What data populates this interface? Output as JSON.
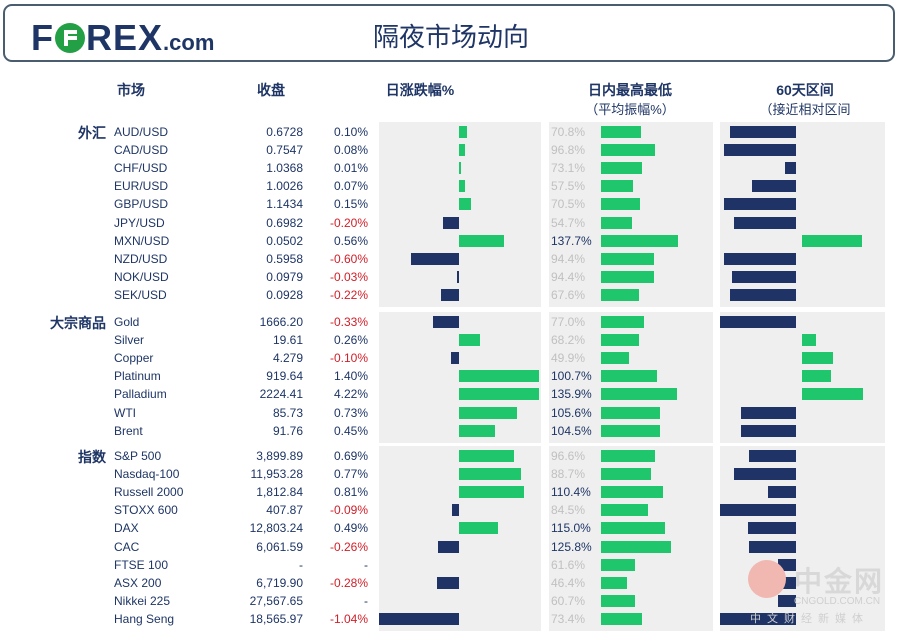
{
  "header": {
    "logo": "FOREX",
    "logo_o": "O",
    "logo_domain": ".com",
    "title": "隔夜市场动向"
  },
  "columns": {
    "market": "市场",
    "close": "收盘",
    "daily_change": "日涨跌幅%",
    "intraday_hilo": "日内最高最低",
    "intraday_sub": "（平均振幅%）",
    "range60": "60天区间",
    "range60_sub": "（接近相对区间"
  },
  "colors": {
    "positive": "#1fc66c",
    "negative": "#1f3366",
    "neg_text": "#d0202a",
    "navy": "#1e3565"
  },
  "chart_data": {
    "type": "bar",
    "groups": [
      {
        "name": "外汇",
        "rows": [
          {
            "name": "AUD/USD",
            "close": "0.6728",
            "change": "0.10%",
            "change_value": 0.1,
            "range": "70.8%",
            "range_value": 70.8,
            "pos60": -0.55
          },
          {
            "name": "CAD/USD",
            "close": "0.7547",
            "change": "0.08%",
            "change_value": 0.08,
            "range": "96.8%",
            "range_value": 96.8,
            "pos60": -0.6
          },
          {
            "name": "CHF/USD",
            "close": "1.0368",
            "change": "0.01%",
            "change_value": 0.01,
            "range": "73.1%",
            "range_value": 73.1,
            "pos60": -0.09
          },
          {
            "name": "EUR/USD",
            "close": "1.0026",
            "change": "0.07%",
            "change_value": 0.07,
            "range": "57.5%",
            "range_value": 57.5,
            "pos60": -0.37
          },
          {
            "name": "GBP/USD",
            "close": "1.1434",
            "change": "0.15%",
            "change_value": 0.15,
            "range": "70.5%",
            "range_value": 70.5,
            "pos60": -0.6
          },
          {
            "name": "JPY/USD",
            "close": "0.6982",
            "change": "-0.20%",
            "change_value": -0.2,
            "range": "54.7%",
            "range_value": 54.7,
            "pos60": -0.52
          },
          {
            "name": "MXN/USD",
            "close": "0.0502",
            "change": "0.56%",
            "change_value": 0.56,
            "range": "137.7%",
            "range_value": 137.7,
            "pos60": 0.5
          },
          {
            "name": "NZD/USD",
            "close": "0.5958",
            "change": "-0.60%",
            "change_value": -0.6,
            "range": "94.4%",
            "range_value": 94.4,
            "pos60": -0.6
          },
          {
            "name": "NOK/USD",
            "close": "0.0979",
            "change": "-0.03%",
            "change_value": -0.03,
            "range": "94.4%",
            "range_value": 94.4,
            "pos60": -0.53
          },
          {
            "name": "SEK/USD",
            "close": "0.0928",
            "change": "-0.22%",
            "change_value": -0.22,
            "range": "67.6%",
            "range_value": 67.6,
            "pos60": -0.55
          }
        ]
      },
      {
        "name": "大宗商品",
        "rows": [
          {
            "name": "Gold",
            "close": "1666.20",
            "change": "-0.33%",
            "change_value": -0.33,
            "range": "77.0%",
            "range_value": 77.0,
            "pos60": -0.67
          },
          {
            "name": "Silver",
            "close": "19.61",
            "change": "0.26%",
            "change_value": 0.26,
            "range": "68.2%",
            "range_value": 68.2,
            "pos60": 0.12
          },
          {
            "name": "Copper",
            "close": "4.279",
            "change": "-0.10%",
            "change_value": -0.1,
            "range": "49.9%",
            "range_value": 49.9,
            "pos60": 0.26
          },
          {
            "name": "Platinum",
            "close": "919.64",
            "change": "1.40%",
            "change_value": 1.4,
            "range": "100.7%",
            "range_value": 100.7,
            "pos60": 0.24
          },
          {
            "name": "Palladium",
            "close": "2224.41",
            "change": "4.22%",
            "change_value": 4.22,
            "range": "135.9%",
            "range_value": 135.9,
            "pos60": 0.51
          },
          {
            "name": "WTI",
            "close": "85.73",
            "change": "0.73%",
            "change_value": 0.73,
            "range": "105.6%",
            "range_value": 105.6,
            "pos60": -0.46
          },
          {
            "name": "Brent",
            "close": "91.76",
            "change": "0.45%",
            "change_value": 0.45,
            "range": "104.5%",
            "range_value": 104.5,
            "pos60": -0.46
          }
        ]
      },
      {
        "name": "指数",
        "rows": [
          {
            "name": "S&P 500",
            "close": "3,899.89",
            "change": "0.69%",
            "change_value": 0.69,
            "range": "96.6%",
            "range_value": 96.6,
            "pos60": -0.39
          },
          {
            "name": "Nasdaq-100",
            "close": "11,953.28",
            "change": "0.77%",
            "change_value": 0.77,
            "range": "88.7%",
            "range_value": 88.7,
            "pos60": -0.52
          },
          {
            "name": "Russell 2000",
            "close": "1,812.84",
            "change": "0.81%",
            "change_value": 0.81,
            "range": "110.4%",
            "range_value": 110.4,
            "pos60": -0.23
          },
          {
            "name": "STOXX 600",
            "close": "407.87",
            "change": "-0.09%",
            "change_value": -0.09,
            "range": "84.5%",
            "range_value": 84.5,
            "pos60": -0.64
          },
          {
            "name": "DAX",
            "close": "12,803.24",
            "change": "0.49%",
            "change_value": 0.49,
            "range": "115.0%",
            "range_value": 115.0,
            "pos60": -0.4
          },
          {
            "name": "CAC",
            "close": "6,061.59",
            "change": "-0.26%",
            "change_value": -0.26,
            "range": "125.8%",
            "range_value": 125.8,
            "pos60": -0.39
          },
          {
            "name": "FTSE 100",
            "close": "-",
            "change": "-",
            "change_value": 0,
            "range": "61.6%",
            "range_value": 61.6,
            "pos60": -0.15
          },
          {
            "name": "ASX 200",
            "close": "6,719.90",
            "change": "-0.28%",
            "change_value": -0.28,
            "range": "46.4%",
            "range_value": 46.4,
            "pos60": -0.15
          },
          {
            "name": "Nikkei 225",
            "close": "27,567.65",
            "change": "-",
            "change_value": 0,
            "range": "60.7%",
            "range_value": 60.7,
            "pos60": -0.15
          },
          {
            "name": "Hang Seng",
            "close": "18,565.97",
            "change": "-1.04%",
            "change_value": -1.04,
            "range": "73.4%",
            "range_value": 73.4,
            "pos60": -0.67
          }
        ]
      }
    ]
  },
  "watermark": {
    "brand": "中金网",
    "url": "CNGOLD.COM.CN",
    "tagline": "中文财经新媒体"
  }
}
